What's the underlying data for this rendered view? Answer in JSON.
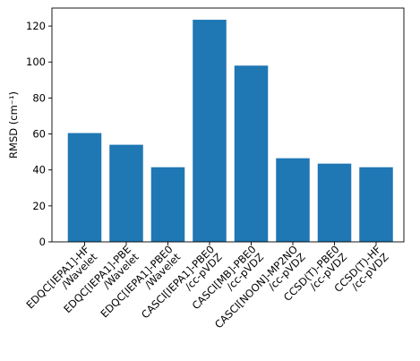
{
  "chart_data": {
    "type": "bar",
    "categories": [
      [
        "EDQC[IEPA1]-HF",
        "/Wavelet"
      ],
      [
        "EDQC[IEPA1]-PBE",
        "/Wavelet"
      ],
      [
        "EDQC[IEPA1]-PBE0",
        "/Wavelet"
      ],
      [
        "CASCI[IEPA1]-PBE0",
        "/cc-pVDZ"
      ],
      [
        "CASCI[MB]-PBE0",
        "/cc-pVDZ"
      ],
      [
        "CASCI[NOON]-MP2NO",
        "/cc-pVDZ"
      ],
      [
        "CCSD(T)-PBE0",
        "/cc-pVDZ"
      ],
      [
        "CCSD(T)-HF",
        "/cc-pVDZ"
      ]
    ],
    "values": [
      60.5,
      54.0,
      41.5,
      123.5,
      98.0,
      46.5,
      43.5,
      41.5
    ],
    "title": "",
    "xlabel": "",
    "ylabel": "RMSD (cm⁻¹)",
    "ylim": [
      0,
      130
    ],
    "yticks": [
      0,
      20,
      40,
      60,
      80,
      100,
      120
    ],
    "grid": false,
    "legend": "none",
    "bar_color": "#1f77b4"
  }
}
